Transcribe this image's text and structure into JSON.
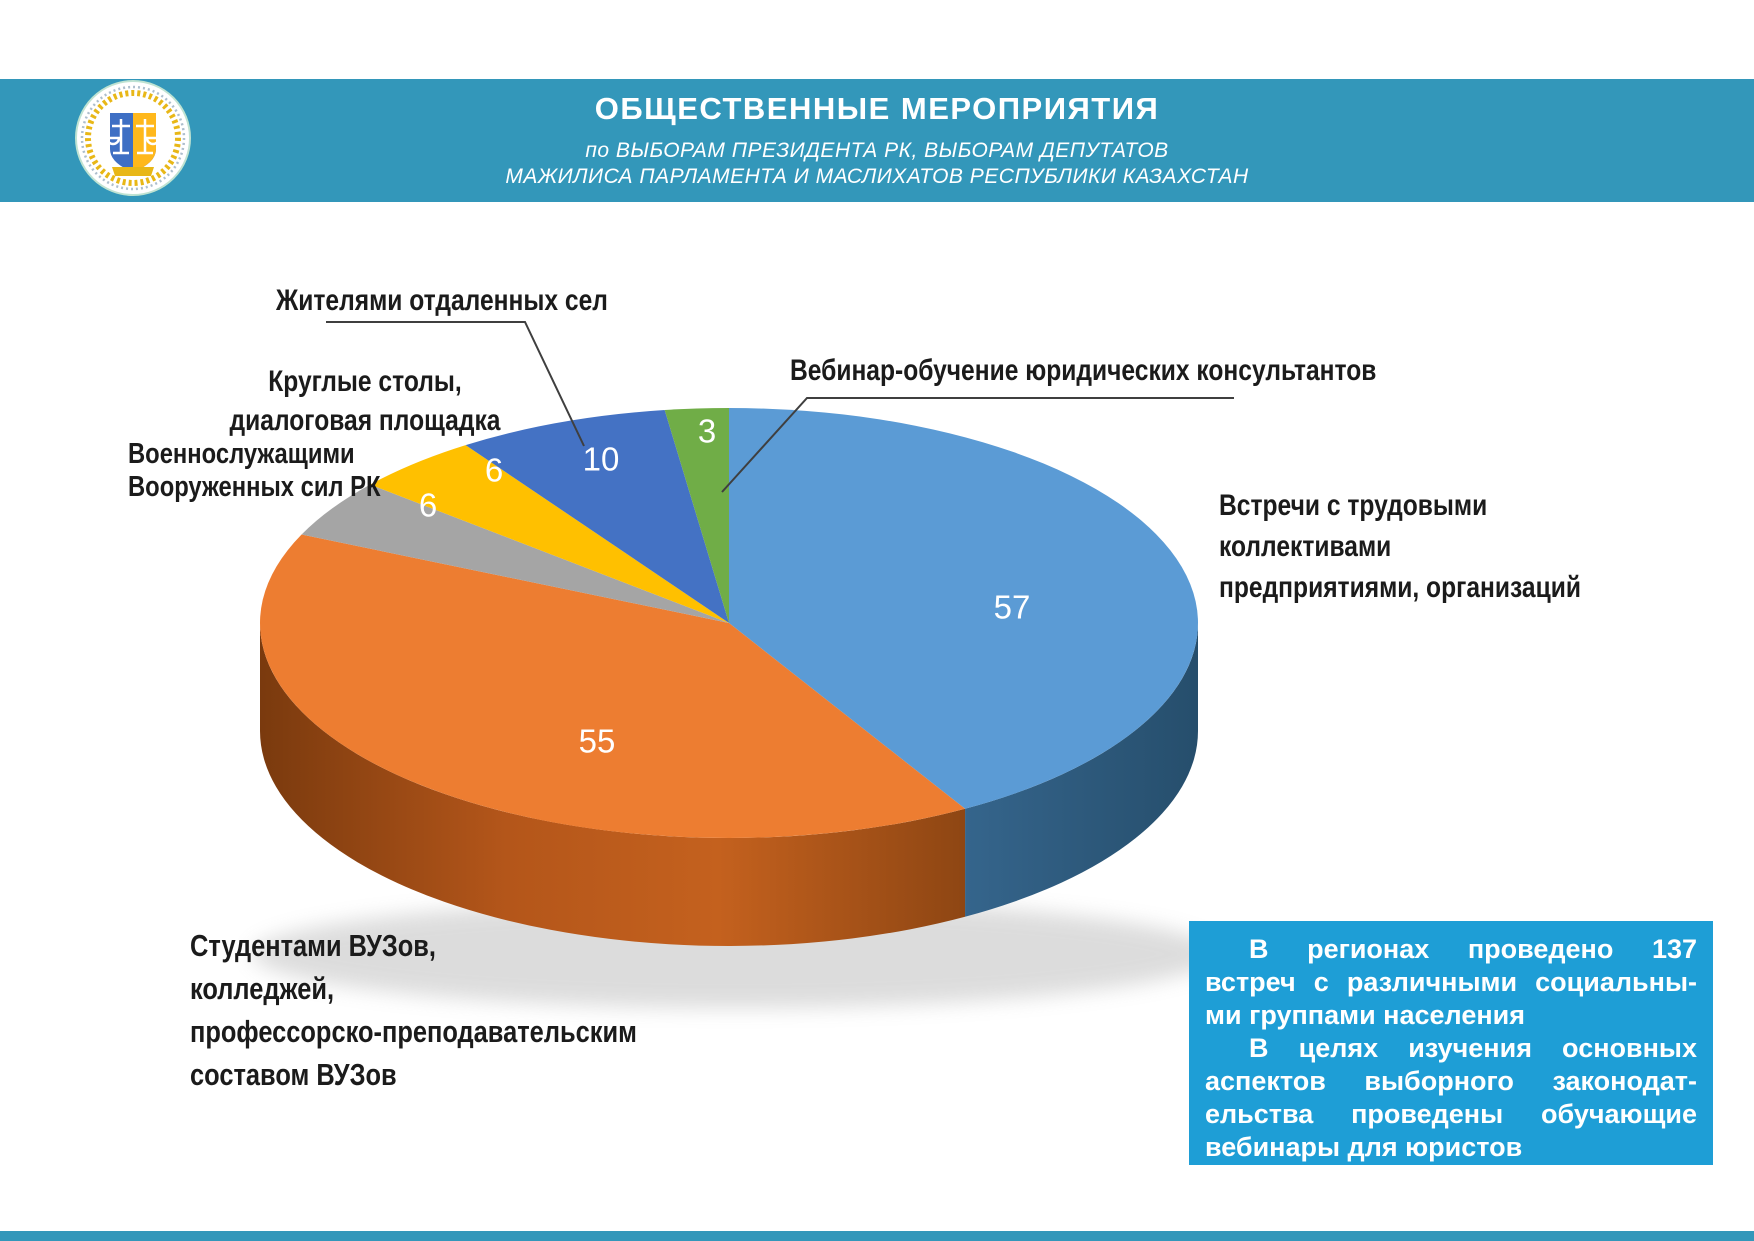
{
  "header": {
    "title": "ОБЩЕСТВЕННЫЕ МЕРОПРИЯТИЯ",
    "subtitle_line1": "по ВЫБОРАМ ПРЕЗИДЕНТА РК, ВЫБОРАМ ДЕПУТАТОВ",
    "subtitle_line2": "МАЖИЛИСА ПАРЛАМЕНТА И МАСЛИХАТОВ РЕСПУБЛИКИ КАЗАХСТАН",
    "banner_color": "#3397BA"
  },
  "chart_data": {
    "type": "pie",
    "style": "3d",
    "direction": "clockwise",
    "start_angle_deg": 0,
    "total": 137,
    "slices": [
      {
        "key": "workers",
        "label": "Встречи с трудовыми коллективами предприятиями, организаций",
        "value": 57,
        "color": "#5B9BD5"
      },
      {
        "key": "students",
        "label": "Студентами ВУЗов, колледжей, профессорско-преподавательским составом ВУЗов",
        "value": 55,
        "color": "#ED7D31"
      },
      {
        "key": "military",
        "label": "Военнослужащими Вооруженных сил РК",
        "value": 6,
        "color": "#A5A5A5"
      },
      {
        "key": "roundtables",
        "label": "Круглые столы, диалоговая площадка",
        "value": 6,
        "color": "#FFC000"
      },
      {
        "key": "villagers",
        "label": "Жителями отдаленных сел",
        "value": 10,
        "color": "#4472C4"
      },
      {
        "key": "webinar",
        "label": "Вебинар-обучение юридических консультантов",
        "value": 3,
        "color": "#70AD47"
      }
    ],
    "legend_position": "callouts",
    "grid": false
  },
  "callouts": {
    "villagers": "Жителями отдаленных сел",
    "roundtables": "Круглые столы,\nдиалоговая площадка",
    "military": "Военнослужащими\nВооруженных сил РК",
    "webinar": "Вебинар-обучение юридических консультантов",
    "workers": "Встречи с трудовыми коллективами\nпредприятиями, организаций",
    "students": "Студентами ВУЗов,\nколледжей,\nпрофессорско-преподавательским\n составом ВУЗов"
  },
  "info_box": {
    "bg_color": "#1E9ED6",
    "lines": [
      "В регионах проведено 137",
      "встреч с различными социальны-",
      "ми группами населения",
      "В целях изучения основных",
      "аспектов выборного законодат-",
      "ельства проведены обучающие",
      "вебинары для юристов"
    ]
  }
}
